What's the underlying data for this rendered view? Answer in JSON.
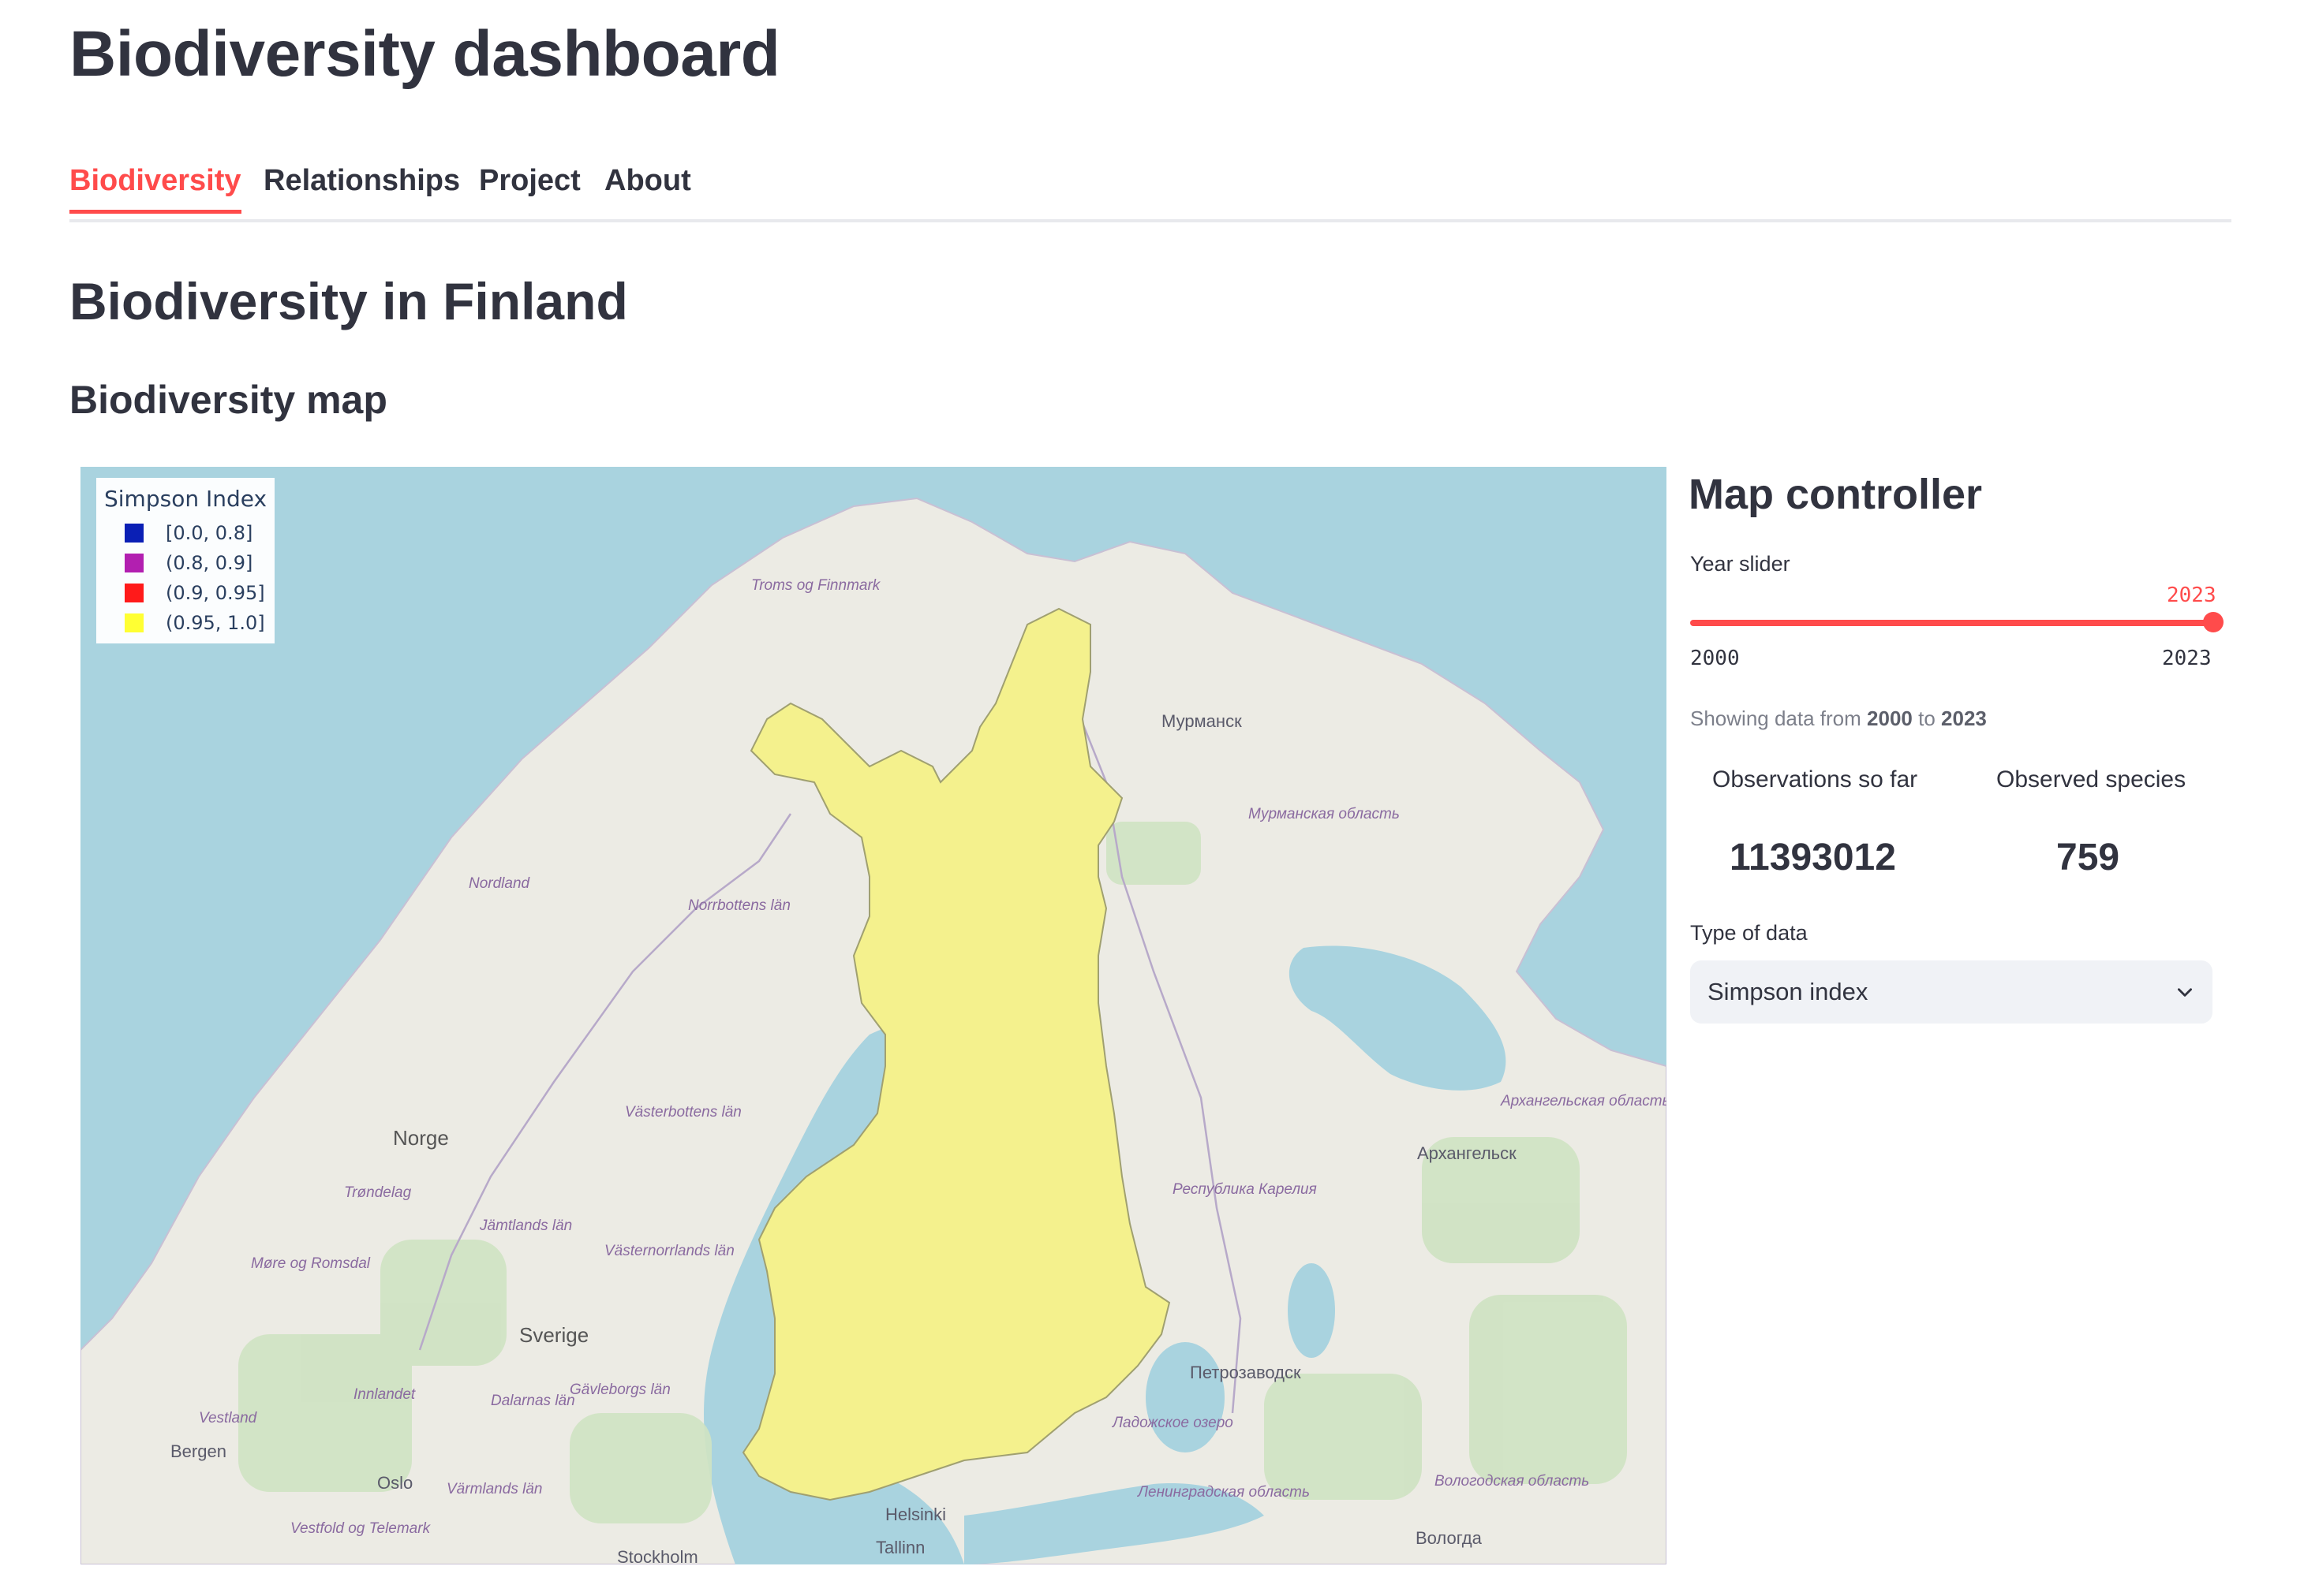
{
  "app": {
    "title": "Biodiversity dashboard"
  },
  "tabs": [
    {
      "label": "Biodiversity",
      "active": true
    },
    {
      "label": "Relationships",
      "active": false
    },
    {
      "label": "Project",
      "active": false
    },
    {
      "label": "About",
      "active": false
    }
  ],
  "page": {
    "title": "Biodiversity in Finland",
    "section_title": "Biodiversity map"
  },
  "map": {
    "legend": {
      "title": "Simpson Index",
      "items": [
        {
          "label": "[0.0, 0.8]",
          "color": "#0a1fb5"
        },
        {
          "label": "(0.8, 0.9]",
          "color": "#b21fb0"
        },
        {
          "label": "(0.9, 0.95]",
          "color": "#ff1a1a"
        },
        {
          "label": "(0.95, 1.0]",
          "color": "#ffff33"
        }
      ]
    },
    "labels": {
      "troms": "Troms og Finnmark",
      "murmansk": "Мурманск",
      "murmansk_oblast": "Мурманская область",
      "nordland": "Nordland",
      "norrbotten": "Norrbottens län",
      "vasterbotten": "Västerbottens län",
      "norge": "Norge",
      "trondelag": "Trøndelag",
      "jamtland": "Jämtlands län",
      "vasternorrland": "Västernorrlands län",
      "more": "Møre og Romsdal",
      "sverige": "Sverige",
      "innlandet": "Innlandet",
      "dalarna": "Dalarnas län",
      "gavleborg": "Gävleborgs län",
      "vestland": "Vestland",
      "bergen": "Bergen",
      "oslo": "Oslo",
      "varmland": "Värmlands län",
      "vestfold": "Vestfold og Telemark",
      "stockholm": "Stockholm",
      "tallinn": "Tallinn",
      "arkhangelsk_oblast": "Архангельская область",
      "arkhangelsk": "Архангельск",
      "karelia": "Республика Карелия",
      "petrozavodsk": "Петрозаводск",
      "ladoga": "Ладожское озеро",
      "leningrad": "Ленинградская область",
      "vologda_oblast": "Вологодская область",
      "vologda": "Вологда",
      "helsinki": "Helsinki"
    }
  },
  "controller": {
    "title": "Map controller",
    "slider": {
      "label": "Year slider",
      "min": "2000",
      "max": "2023",
      "value": "2023",
      "accent": "#ff4b4b"
    },
    "caption_prefix": "Showing data from",
    "caption_from": "2000",
    "caption_mid": "to",
    "caption_to": "2023",
    "metrics": [
      {
        "label": "Observations so far",
        "value": "11393012"
      },
      {
        "label": "Observed species",
        "value": "759"
      }
    ],
    "type_label": "Type of data",
    "type_value": "Simpson index"
  }
}
